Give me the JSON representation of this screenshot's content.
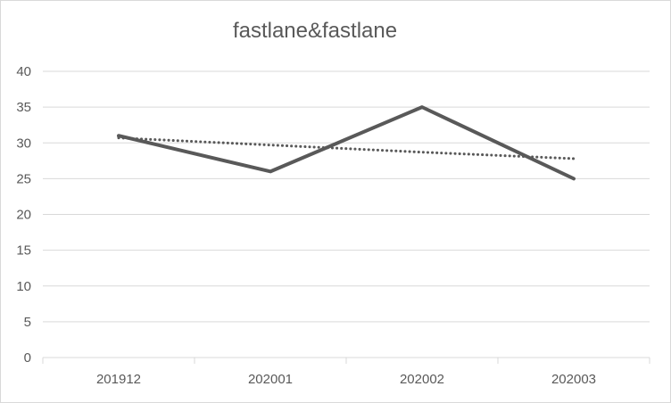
{
  "chart_data": {
    "type": "line",
    "title": "fastlane&fastlane",
    "categories": [
      "201912",
      "202001",
      "202002",
      "202003"
    ],
    "series": [
      {
        "values": [
          31,
          26,
          35,
          25
        ],
        "color": "#595959",
        "style": "solid"
      },
      {
        "values": [
          30.7,
          29.7,
          28.7,
          27.8
        ],
        "color": "#595959",
        "style": "dotted",
        "kind": "trendline"
      }
    ],
    "ylim": [
      0,
      40
    ],
    "yticks": [
      0,
      5,
      10,
      15,
      20,
      25,
      30,
      35,
      40
    ],
    "grid": true,
    "legend": "none"
  }
}
